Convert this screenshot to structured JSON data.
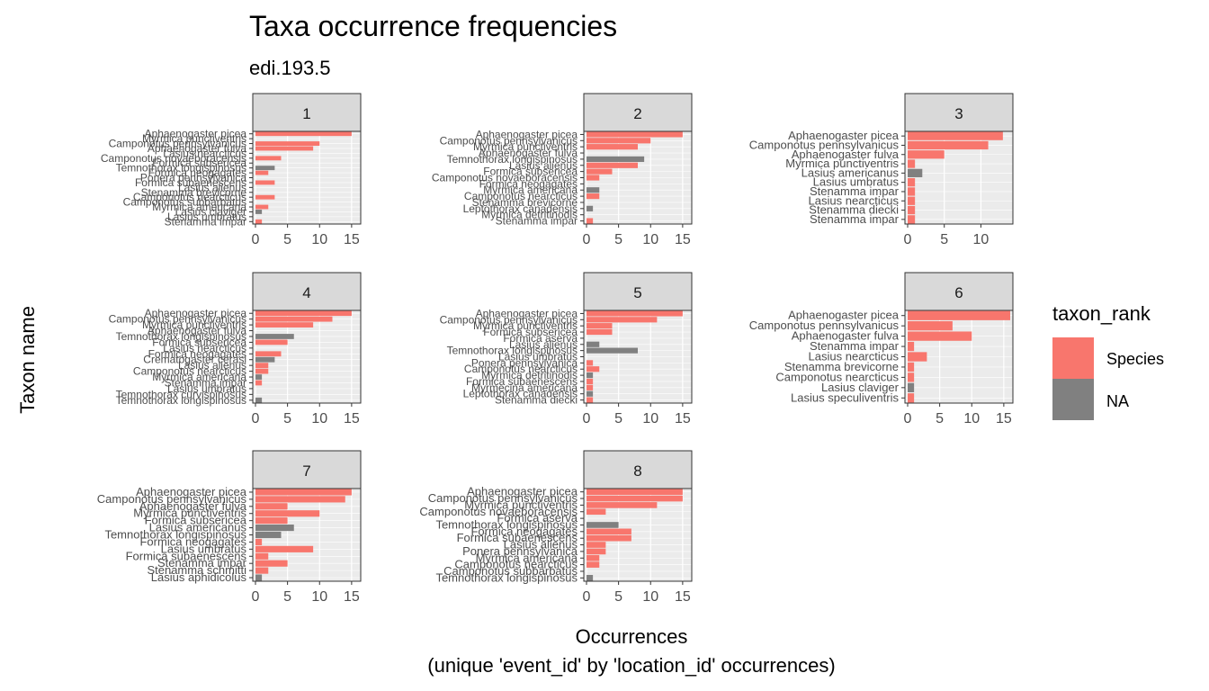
{
  "chart_data": {
    "type": "bar",
    "orientation": "horizontal",
    "title": "Taxa occurrence frequencies",
    "subtitle": "edi.193.5",
    "xlabel": "Occurrences",
    "xlabel_line2": "(unique 'event_id' by 'location_id' occurrences)",
    "ylabel": "Taxon name",
    "grid": true,
    "legend": {
      "title": "taxon_rank",
      "placement": "right",
      "entries": [
        {
          "label": "Species",
          "color": "#F8766D"
        },
        {
          "label": "NA",
          "color": "#808080"
        }
      ]
    },
    "panels": [
      {
        "strip": "1",
        "xlim": [
          0,
          16
        ],
        "xticks": [
          0,
          5,
          10,
          15
        ],
        "labels": [
          "Aphaenogaster picea",
          "Myrmica punctiventris",
          "Camponotus pennsylvanicus",
          "Aphaenogaster fulva",
          "Lasius nearcticus",
          "Camponotus novaeboracensis",
          "Formica subsericea",
          "Temnothorax longispinosus",
          "Formica neogagates",
          "Ponera pennsylvanica",
          "Formica subaenescens",
          "Lasius alienus",
          "Stenamma brevicorne",
          "Camponotus nearcticus",
          "Camponotus subbarbatus",
          "Myrmica americana",
          "Lasius claviger",
          "Lasius umbratus",
          "Stenamma impar"
        ],
        "bars": [
          {
            "label": "Aphaenogaster picea",
            "value": 15,
            "rank": "Species"
          },
          {
            "label": "Camponotus pennsylvanicus",
            "value": 10,
            "rank": "Species"
          },
          {
            "label": "Aphaenogaster fulva",
            "value": 9,
            "rank": "Species"
          },
          {
            "label": "Camponotus novaeboracensis",
            "value": 4,
            "rank": "Species"
          },
          {
            "label": "Temnothorax longispinosus",
            "value": 3,
            "rank": "NA"
          },
          {
            "label": "Formica neogagates",
            "value": 2,
            "rank": "Species"
          },
          {
            "label": "Formica subaenescens",
            "value": 3,
            "rank": "Species"
          },
          {
            "label": "Camponotus nearcticus",
            "value": 3,
            "rank": "Species"
          },
          {
            "label": "Myrmica americana",
            "value": 2,
            "rank": "Species"
          },
          {
            "label": "Lasius claviger",
            "value": 1,
            "rank": "NA"
          },
          {
            "label": "Stenamma impar",
            "value": 1,
            "rank": "Species"
          }
        ]
      },
      {
        "strip": "2",
        "xlim": [
          0,
          16
        ],
        "xticks": [
          0,
          5,
          10,
          15
        ],
        "labels": [
          "Aphaenogaster picea",
          "Camponotus pennsylvanicus",
          "Myrmica punctiventris",
          "Aphaenogaster fulva",
          "Temnothorax longispinosus",
          "Lasius alienus",
          "Formica subsericea",
          "Camponotus novaeboracensis",
          "Formica neogagates",
          "Myrmica americana",
          "Camponotus nearcticus",
          "Stenamma brevicorne",
          "Leptothorax canadensis",
          "Myrmica detritinodis",
          "Stenamma impar"
        ],
        "bars": [
          {
            "label": "Aphaenogaster picea",
            "value": 15,
            "rank": "Species"
          },
          {
            "label": "Camponotus pennsylvanicus",
            "value": 10,
            "rank": "Species"
          },
          {
            "label": "Myrmica punctiventris",
            "value": 8,
            "rank": "Species"
          },
          {
            "label": "Temnothorax longispinosus",
            "value": 9,
            "rank": "NA"
          },
          {
            "label": "Lasius alienus",
            "value": 8,
            "rank": "Species"
          },
          {
            "label": "Formica subsericea",
            "value": 4,
            "rank": "Species"
          },
          {
            "label": "Camponotus novaeboracensis",
            "value": 2,
            "rank": "Species"
          },
          {
            "label": "Myrmica americana",
            "value": 2,
            "rank": "NA"
          },
          {
            "label": "Camponotus nearcticus",
            "value": 2,
            "rank": "Species"
          },
          {
            "label": "Leptothorax canadensis",
            "value": 1,
            "rank": "NA"
          },
          {
            "label": "Stenamma impar",
            "value": 1,
            "rank": "Species"
          }
        ]
      },
      {
        "strip": "3",
        "xlim": [
          0,
          14
        ],
        "xticks": [
          0,
          5,
          10
        ],
        "labels": [
          "Aphaenogaster picea",
          "Camponotus pennsylvanicus",
          "Aphaenogaster fulva",
          "Myrmica punctiventris",
          "Lasius americanus",
          "Lasius umbratus",
          "Stenamma impar",
          "Lasius nearcticus",
          "Stenamma diecki",
          "Stenamma impar"
        ],
        "bars": [
          {
            "label": "Aphaenogaster picea",
            "value": 13,
            "rank": "Species"
          },
          {
            "label": "Camponotus pennsylvanicus",
            "value": 11,
            "rank": "Species"
          },
          {
            "label": "Aphaenogaster fulva",
            "value": 5,
            "rank": "Species"
          },
          {
            "label": "Myrmica punctiventris",
            "value": 1,
            "rank": "Species"
          },
          {
            "label": "Lasius americanus",
            "value": 2,
            "rank": "NA"
          },
          {
            "label": "Lasius umbratus",
            "value": 1,
            "rank": "Species"
          },
          {
            "label": "Stenamma impar",
            "value": 1,
            "rank": "Species"
          },
          {
            "label": "Lasius nearcticus",
            "value": 1,
            "rank": "Species"
          },
          {
            "label": "Stenamma diecki",
            "value": 1,
            "rank": "Species"
          },
          {
            "label": "Stenamma impar",
            "value": 1,
            "rank": "Species"
          }
        ]
      },
      {
        "strip": "4",
        "xlim": [
          0,
          16
        ],
        "xticks": [
          0,
          5,
          10,
          15
        ],
        "labels": [
          "Aphaenogaster picea",
          "Camponotus pennsylvanicus",
          "Myrmica punctiventris",
          "Aphaenogaster fulva",
          "Temnothorax longispinosus",
          "Formica subsericea",
          "Lasius nearcticus",
          "Formica neogagates",
          "Crematogaster cerasi",
          "Lasius alienus",
          "Camponotus nearcticus",
          "Myrmica americana",
          "Stenamma impar",
          "Lasius umbratus",
          "Temnothorax curvispinosus",
          "Temnothorax longispinosus"
        ],
        "bars": [
          {
            "label": "Aphaenogaster picea",
            "value": 15,
            "rank": "Species"
          },
          {
            "label": "Camponotus pennsylvanicus",
            "value": 12,
            "rank": "Species"
          },
          {
            "label": "Myrmica punctiventris",
            "value": 9,
            "rank": "Species"
          },
          {
            "label": "Temnothorax longispinosus",
            "value": 6,
            "rank": "NA"
          },
          {
            "label": "Formica subsericea",
            "value": 5,
            "rank": "Species"
          },
          {
            "label": "Formica neogagates",
            "value": 4,
            "rank": "Species"
          },
          {
            "label": "Crematogaster cerasi",
            "value": 3,
            "rank": "NA"
          },
          {
            "label": "Lasius alienus",
            "value": 2,
            "rank": "Species"
          },
          {
            "label": "Camponotus nearcticus",
            "value": 2,
            "rank": "Species"
          },
          {
            "label": "Myrmica americana",
            "value": 1,
            "rank": "NA"
          },
          {
            "label": "Stenamma impar",
            "value": 1,
            "rank": "Species"
          },
          {
            "label": "Temnothorax longispinosus",
            "value": 1,
            "rank": "NA"
          }
        ]
      },
      {
        "strip": "5",
        "xlim": [
          0,
          16
        ],
        "xticks": [
          0,
          5,
          10,
          15
        ],
        "labels": [
          "Aphaenogaster picea",
          "Camponotus pennsylvanicus",
          "Myrmica punctiventris",
          "Formica subsericea",
          "Formica aserva",
          "Lasius alienus",
          "Temnothorax longispinosus",
          "Lasius umbratus",
          "Ponera pennsylvanica",
          "Camponotus nearcticus",
          "Myrmica detritinodis",
          "Formica subaenescens",
          "Myrmecina americana",
          "Leptothorax canadensis",
          "Stenamma diecki"
        ],
        "bars": [
          {
            "label": "Aphaenogaster picea",
            "value": 15,
            "rank": "Species"
          },
          {
            "label": "Camponotus pennsylvanicus",
            "value": 11,
            "rank": "Species"
          },
          {
            "label": "Myrmica punctiventris",
            "value": 4,
            "rank": "Species"
          },
          {
            "label": "Formica subsericea",
            "value": 4,
            "rank": "Species"
          },
          {
            "label": "Lasius alienus",
            "value": 2,
            "rank": "NA"
          },
          {
            "label": "Temnothorax longispinosus",
            "value": 8,
            "rank": "NA"
          },
          {
            "label": "Ponera pennsylvanica",
            "value": 1,
            "rank": "Species"
          },
          {
            "label": "Camponotus nearcticus",
            "value": 2,
            "rank": "Species"
          },
          {
            "label": "Myrmica detritinodis",
            "value": 1,
            "rank": "NA"
          },
          {
            "label": "Formica subaenescens",
            "value": 1,
            "rank": "Species"
          },
          {
            "label": "Myrmecina americana",
            "value": 1,
            "rank": "Species"
          },
          {
            "label": "Leptothorax canadensis",
            "value": 1,
            "rank": "NA"
          },
          {
            "label": "Stenamma diecki",
            "value": 1,
            "rank": "Species"
          }
        ]
      },
      {
        "strip": "6",
        "xlim": [
          0,
          16
        ],
        "xticks": [
          0,
          5,
          10,
          15
        ],
        "labels": [
          "Aphaenogaster picea",
          "Camponotus pennsylvanicus",
          "Aphaenogaster fulva",
          "Stenamma impar",
          "Lasius nearcticus",
          "Stenamma brevicorne",
          "Camponotus nearcticus",
          "Lasius claviger",
          "Lasius speculiventris"
        ],
        "bars": [
          {
            "label": "Aphaenogaster picea",
            "value": 16,
            "rank": "Species"
          },
          {
            "label": "Camponotus pennsylvanicus",
            "value": 7,
            "rank": "Species"
          },
          {
            "label": "Aphaenogaster fulva",
            "value": 10,
            "rank": "Species"
          },
          {
            "label": "Stenamma impar",
            "value": 1,
            "rank": "Species"
          },
          {
            "label": "Lasius nearcticus",
            "value": 3,
            "rank": "Species"
          },
          {
            "label": "Stenamma brevicorne",
            "value": 1,
            "rank": "Species"
          },
          {
            "label": "Camponotus nearcticus",
            "value": 1,
            "rank": "Species"
          },
          {
            "label": "Lasius claviger",
            "value": 1,
            "rank": "NA"
          },
          {
            "label": "Lasius speculiventris",
            "value": 1,
            "rank": "Species"
          }
        ]
      },
      {
        "strip": "7",
        "xlim": [
          0,
          16
        ],
        "xticks": [
          0,
          5,
          10,
          15
        ],
        "labels": [
          "Aphaenogaster picea",
          "Camponotus pennsylvanicus",
          "Aphaenogaster fulva",
          "Myrmica punctiventris",
          "Formica subsericea",
          "Lasius americanus",
          "Temnothorax longispinosus",
          "Formica neogagates",
          "Lasius umbratus",
          "Formica subaenescens",
          "Stenamma impar",
          "Stenamma schmitti",
          "Lasius aphidicolus"
        ],
        "bars": [
          {
            "label": "Aphaenogaster picea",
            "value": 15,
            "rank": "Species"
          },
          {
            "label": "Camponotus pennsylvanicus",
            "value": 14,
            "rank": "Species"
          },
          {
            "label": "Aphaenogaster fulva",
            "value": 5,
            "rank": "Species"
          },
          {
            "label": "Myrmica punctiventris",
            "value": 10,
            "rank": "Species"
          },
          {
            "label": "Formica subsericea",
            "value": 5,
            "rank": "Species"
          },
          {
            "label": "Lasius americanus",
            "value": 6,
            "rank": "NA"
          },
          {
            "label": "Temnothorax longispinosus",
            "value": 4,
            "rank": "NA"
          },
          {
            "label": "Formica neogagates",
            "value": 1,
            "rank": "Species"
          },
          {
            "label": "Lasius umbratus",
            "value": 9,
            "rank": "Species"
          },
          {
            "label": "Formica subaenescens",
            "value": 2,
            "rank": "Species"
          },
          {
            "label": "Stenamma impar",
            "value": 5,
            "rank": "Species"
          },
          {
            "label": "Stenamma schmitti",
            "value": 2,
            "rank": "Species"
          },
          {
            "label": "Lasius aphidicolus",
            "value": 1,
            "rank": "NA"
          }
        ]
      },
      {
        "strip": "8",
        "xlim": [
          0,
          16
        ],
        "xticks": [
          0,
          5,
          10,
          15
        ],
        "labels": [
          "Aphaenogaster picea",
          "Camponotus pennsylvanicus",
          "Myrmica punctiventris",
          "Camponotus novaeboracensis",
          "Formica aserva",
          "Temnothorax longispinosus",
          "Formica neogagates",
          "Formica subaenescens",
          "Lasius alienus",
          "Ponera pennsylvanica",
          "Myrmica americana",
          "Camponotus nearcticus",
          "Camponotus subbarbatus",
          "Temnothorax longispinosus"
        ],
        "bars": [
          {
            "label": "Aphaenogaster picea",
            "value": 15,
            "rank": "Species"
          },
          {
            "label": "Camponotus pennsylvanicus",
            "value": 15,
            "rank": "Species"
          },
          {
            "label": "Myrmica punctiventris",
            "value": 11,
            "rank": "Species"
          },
          {
            "label": "Camponotus novaeboracensis",
            "value": 3,
            "rank": "Species"
          },
          {
            "label": "Temnothorax longispinosus",
            "value": 5,
            "rank": "NA"
          },
          {
            "label": "Formica neogagates",
            "value": 7,
            "rank": "Species"
          },
          {
            "label": "Formica subaenescens",
            "value": 7,
            "rank": "Species"
          },
          {
            "label": "Lasius alienus",
            "value": 3,
            "rank": "Species"
          },
          {
            "label": "Ponera pennsylvanica",
            "value": 3,
            "rank": "Species"
          },
          {
            "label": "Myrmica americana",
            "value": 2,
            "rank": "Species"
          },
          {
            "label": "Camponotus nearcticus",
            "value": 2,
            "rank": "Species"
          },
          {
            "label": "Temnothorax longispinosus",
            "value": 1,
            "rank": "NA"
          }
        ]
      }
    ]
  }
}
